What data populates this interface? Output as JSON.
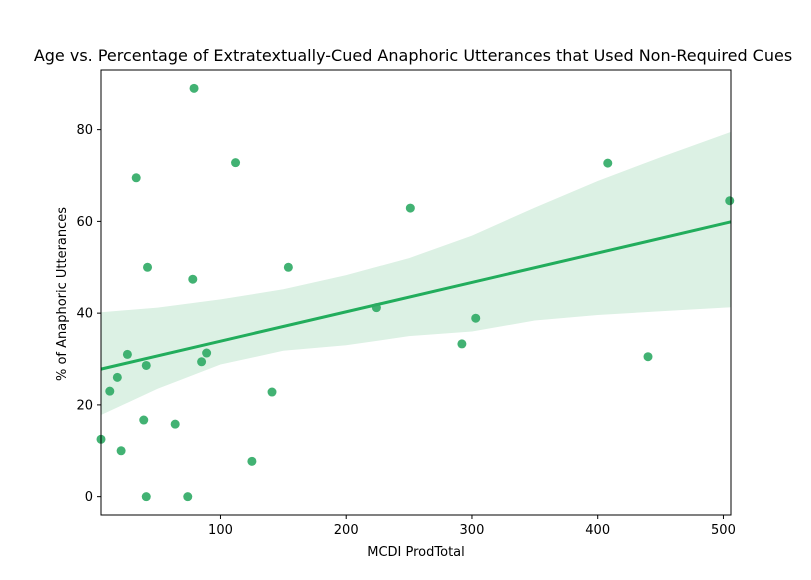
{
  "chart_data": {
    "type": "scatter",
    "title": "Age vs. Percentage of Extratextually-Cued Anaphoric Utterances that Used Non-Required Cues",
    "xlabel": "MCDI ProdTotal",
    "ylabel": "% of Anaphoric Utterances",
    "xlim": [
      5,
      506
    ],
    "ylim": [
      -4,
      93
    ],
    "x_ticks": [
      100,
      200,
      300,
      400,
      500
    ],
    "y_ticks": [
      0,
      20,
      40,
      60,
      80
    ],
    "grid": false,
    "legend": "none",
    "colors": {
      "points": "#2eaa64",
      "regression_line": "#22ad5c",
      "confidence_band": "#dcf1e4",
      "axes": "#000000"
    },
    "points": [
      {
        "x": 5,
        "y": 12.5
      },
      {
        "x": 12,
        "y": 23
      },
      {
        "x": 18,
        "y": 26
      },
      {
        "x": 21,
        "y": 10
      },
      {
        "x": 26,
        "y": 31
      },
      {
        "x": 33,
        "y": 69.5
      },
      {
        "x": 39,
        "y": 16.7
      },
      {
        "x": 41,
        "y": 28.6
      },
      {
        "x": 41,
        "y": 0
      },
      {
        "x": 42,
        "y": 50
      },
      {
        "x": 64,
        "y": 15.8
      },
      {
        "x": 74,
        "y": 0
      },
      {
        "x": 78,
        "y": 47.4
      },
      {
        "x": 79,
        "y": 89
      },
      {
        "x": 85,
        "y": 29.4
      },
      {
        "x": 89,
        "y": 31.3
      },
      {
        "x": 112,
        "y": 72.8
      },
      {
        "x": 125,
        "y": 7.7
      },
      {
        "x": 141,
        "y": 22.8
      },
      {
        "x": 154,
        "y": 50
      },
      {
        "x": 224,
        "y": 41.2
      },
      {
        "x": 251,
        "y": 62.9
      },
      {
        "x": 292,
        "y": 33.3
      },
      {
        "x": 303,
        "y": 38.9
      },
      {
        "x": 408,
        "y": 72.7
      },
      {
        "x": 440,
        "y": 30.5
      },
      {
        "x": 505,
        "y": 64.5
      }
    ],
    "regression": {
      "x": [
        5,
        506
      ],
      "y": [
        27.8,
        59.9
      ]
    },
    "confidence_band": {
      "x": [
        5,
        50,
        100,
        150,
        200,
        250,
        300,
        350,
        400,
        450,
        506
      ],
      "upper": [
        40.2,
        41.2,
        43.0,
        45.2,
        48.3,
        52.0,
        56.9,
        63.0,
        68.8,
        74.0,
        79.5
      ],
      "lower": [
        17.8,
        23.5,
        28.8,
        31.8,
        33.0,
        35.0,
        36.0,
        38.4,
        39.6,
        40.4,
        41.3
      ]
    }
  }
}
